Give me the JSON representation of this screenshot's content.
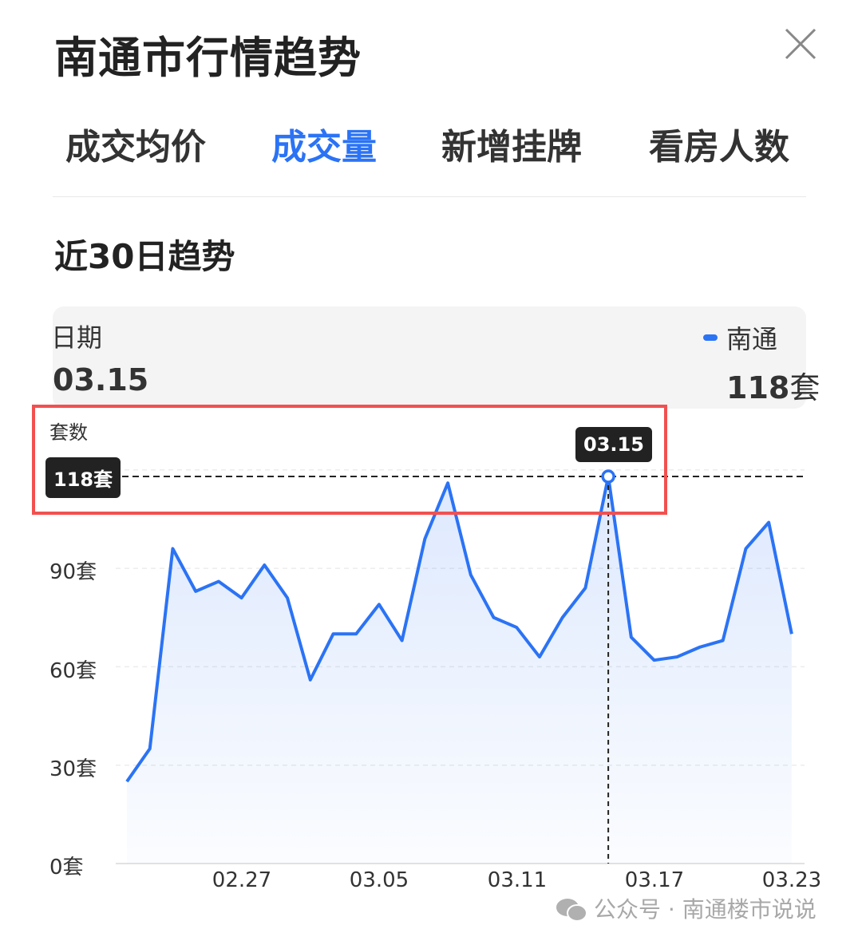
{
  "header": {
    "title": "南通市行情趋势",
    "close_icon": "close-icon"
  },
  "tabs": [
    {
      "label": "成交均价",
      "active": false
    },
    {
      "label": "成交量",
      "active": true
    },
    {
      "label": "新增挂牌",
      "active": false
    },
    {
      "label": "看房人数",
      "active": false
    }
  ],
  "section_title": "近30日趋势",
  "info": {
    "date_label": "日期",
    "date_value": "03.15",
    "series_name": "南通",
    "value_number": "118",
    "value_unit": "套"
  },
  "colors": {
    "accent": "#2b73f5",
    "highlight_box": "#f25050"
  },
  "watermark": "公众号 · 南通楼市说说",
  "chart_data": {
    "type": "area",
    "ylabel": "套数",
    "ylim": [
      0,
      120
    ],
    "yticks": [
      0,
      30,
      60,
      90
    ],
    "ytick_labels": [
      "0套",
      "30套",
      "60套",
      "90套"
    ],
    "x": [
      "02.22",
      "02.23",
      "02.24",
      "02.25",
      "02.26",
      "02.27",
      "02.28",
      "03.01",
      "03.02",
      "03.03",
      "03.04",
      "03.05",
      "03.06",
      "03.07",
      "03.08",
      "03.09",
      "03.10",
      "03.11",
      "03.12",
      "03.13",
      "03.14",
      "03.15",
      "03.16",
      "03.17",
      "03.18",
      "03.19",
      "03.20",
      "03.21",
      "03.22",
      "03.23"
    ],
    "xtick_labels": [
      "02.27",
      "03.05",
      "03.11",
      "03.17",
      "03.23"
    ],
    "series": [
      {
        "name": "南通",
        "values": [
          25,
          35,
          96,
          83,
          86,
          81,
          91,
          81,
          56,
          70,
          70,
          79,
          68,
          99,
          116,
          88,
          75,
          72,
          63,
          75,
          84,
          118,
          69,
          62,
          63,
          66,
          68,
          96,
          104,
          70
        ]
      }
    ],
    "grid": true,
    "selected": {
      "x": "03.15",
      "value": 118,
      "x_label": "03.15",
      "y_label": "118套"
    }
  }
}
